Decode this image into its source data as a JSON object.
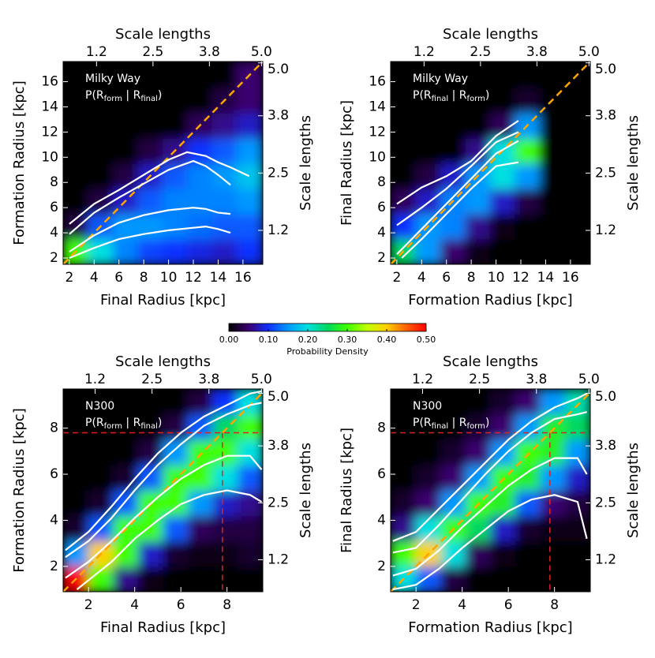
{
  "chart_data": [
    {
      "type": "heatmap",
      "name": "Milky Way",
      "formula": {
        "prefix": "P(R",
        "sub1": "form",
        "mid": " | R",
        "sub2": "final",
        "suffix": ")"
      },
      "xlabel": "Final Radius [kpc]",
      "ylabel": "Formation Radius [kpc]",
      "x2label": "Scale lengths",
      "y2label": "Scale lengths",
      "xlim": [
        1.5,
        17.6
      ],
      "ylim": [
        1.5,
        17.6
      ],
      "xticks": [
        2,
        4,
        6,
        8,
        10,
        12,
        14,
        16
      ],
      "yticks": [
        2,
        4,
        6,
        8,
        10,
        12,
        14,
        16
      ],
      "x2lim": [
        0.43,
        5.03
      ],
      "x2ticks": [
        1.2,
        2.5,
        3.8,
        {
          "value": 5,
          "label": "5.0"
        }
      ],
      "y2lim": [
        0.43,
        5.03
      ],
      "y2ticks": [
        1.2,
        2.5,
        3.8,
        {
          "value": 5,
          "label": "5.0"
        }
      ],
      "density": {
        "xbins": [
          1.5,
          3.5,
          5.5,
          7.5,
          9.5,
          11.5,
          13.5,
          15.5,
          17.6
        ],
        "ybins": [
          1.5,
          3.5,
          5.5,
          7.5,
          9.5,
          11.5,
          13.5,
          15.5,
          17.6
        ],
        "values": [
          [
            0.3,
            0.2,
            0.14,
            0.11,
            0.1,
            0.09,
            0.08,
            0.1
          ],
          [
            0.03,
            0.12,
            0.15,
            0.15,
            0.14,
            0.13,
            0.12,
            0.12
          ],
          [
            0,
            0.03,
            0.08,
            0.12,
            0.14,
            0.14,
            0.14,
            0.15
          ],
          [
            0,
            0,
            0.03,
            0.08,
            0.12,
            0.14,
            0.15,
            0.18
          ],
          [
            0,
            0,
            0,
            0.03,
            0.06,
            0.1,
            0.12,
            0.15
          ],
          [
            0,
            0,
            0,
            0,
            0,
            0.04,
            0.06,
            0.08
          ],
          [
            0,
            0,
            0,
            0,
            0,
            0,
            0.03,
            0.05
          ],
          [
            0,
            0,
            0,
            0,
            0,
            0,
            0,
            0.05
          ]
        ]
      },
      "contour_color": "#ffffff",
      "diagonal_color": "#ffa500",
      "contours": [
        {
          "x": [
            2,
            4,
            6,
            8,
            10,
            11.5,
            13,
            14,
            15,
            16.5
          ],
          "y": [
            4.7,
            6.3,
            7.4,
            8.6,
            9.8,
            10.4,
            10.1,
            9.6,
            9.2,
            8.5
          ]
        },
        {
          "x": [
            2,
            4,
            6,
            8,
            10,
            12,
            13,
            14,
            15
          ],
          "y": [
            3.9,
            5.6,
            6.8,
            7.9,
            9.0,
            9.7,
            9.3,
            8.6,
            7.8
          ]
        },
        {
          "x": [
            2,
            4,
            6,
            8,
            10,
            12,
            13,
            14,
            15
          ],
          "y": [
            2.5,
            3.8,
            4.8,
            5.4,
            5.8,
            6.0,
            5.9,
            5.6,
            5.5
          ]
        },
        {
          "x": [
            2,
            4,
            6,
            8,
            10,
            12,
            13,
            14,
            15
          ],
          "y": [
            2.0,
            2.8,
            3.5,
            3.9,
            4.2,
            4.4,
            4.5,
            4.3,
            4.0
          ]
        }
      ]
    },
    {
      "type": "heatmap",
      "name": "Milky Way",
      "formula": {
        "prefix": "P(R",
        "sub1": "final",
        "mid": " | R",
        "sub2": "form",
        "suffix": ")"
      },
      "xlabel": "Formation Radius [kpc]",
      "ylabel": "Final Radius [kpc]",
      "x2label": "Scale lengths",
      "y2label": "Scale lengths",
      "xlim": [
        1.5,
        17.6
      ],
      "ylim": [
        1.5,
        17.6
      ],
      "xticks": [
        2,
        4,
        6,
        8,
        10,
        12,
        14,
        16
      ],
      "yticks": [
        2,
        4,
        6,
        8,
        10,
        12,
        14,
        16
      ],
      "x2lim": [
        0.43,
        5.03
      ],
      "x2ticks": [
        1.2,
        2.5,
        3.8,
        {
          "value": 5,
          "label": "5.0"
        }
      ],
      "y2lim": [
        0.43,
        5.03
      ],
      "y2ticks": [
        1.2,
        2.5,
        3.8,
        {
          "value": 5,
          "label": "5.0"
        }
      ],
      "density": {
        "xbins": [
          1.5,
          3.5,
          5.5,
          7.5,
          9.5,
          11.5,
          13.5,
          15.5,
          17.6
        ],
        "ybins": [
          1.5,
          3.5,
          5.5,
          7.5,
          9.5,
          11.5,
          13.5,
          15.5,
          17.6
        ],
        "values": [
          [
            0.25,
            0.15,
            0.05,
            0.01,
            0,
            0,
            0,
            0
          ],
          [
            0.1,
            0.15,
            0.14,
            0.06,
            0.01,
            0,
            0,
            0
          ],
          [
            0.04,
            0.08,
            0.14,
            0.15,
            0.08,
            0.03,
            0,
            0
          ],
          [
            0,
            0.03,
            0.08,
            0.15,
            0.2,
            0.15,
            0,
            0
          ],
          [
            0,
            0,
            0,
            0.06,
            0.2,
            0.3,
            0,
            0
          ],
          [
            0,
            0,
            0,
            0,
            0.04,
            0.15,
            0,
            0
          ],
          [
            0,
            0,
            0,
            0,
            0,
            0.02,
            0,
            0
          ],
          [
            0,
            0,
            0,
            0,
            0,
            0,
            0,
            0
          ]
        ]
      },
      "contour_color": "#ffffff",
      "diagonal_color": "#ffa500",
      "contours": [
        {
          "x": [
            2,
            4,
            6,
            8,
            10,
            11.8
          ],
          "y": [
            6.3,
            7.6,
            8.5,
            9.7,
            11.7,
            12.9
          ]
        },
        {
          "x": [
            2,
            4,
            6,
            8,
            10,
            11.8
          ],
          "y": [
            4.6,
            6.0,
            7.5,
            9.3,
            11.2,
            12.0
          ]
        },
        {
          "x": [
            2,
            4,
            6,
            8,
            10,
            11.8
          ],
          "y": [
            2.3,
            4.3,
            6.3,
            8.3,
            10.3,
            11.3
          ]
        },
        {
          "x": [
            2.4,
            4,
            6,
            8,
            10,
            11.8
          ],
          "y": [
            2.0,
            3.5,
            5.5,
            7.5,
            9.3,
            9.6
          ]
        }
      ]
    },
    {
      "type": "heatmap",
      "name": "N300",
      "formula": {
        "prefix": "P(R",
        "sub1": "form",
        "mid": " | R",
        "sub2": "final",
        "suffix": ")"
      },
      "xlabel": "Final Radius [kpc]",
      "ylabel": "Formation Radius [kpc]",
      "x2label": "Scale lengths",
      "y2label": "Scale lengths",
      "xlim": [
        0.9,
        9.55
      ],
      "ylim": [
        0.9,
        9.7
      ],
      "xticks": [
        2,
        4,
        6,
        8
      ],
      "yticks": [
        2,
        4,
        6,
        8
      ],
      "x2lim": [
        0.47,
        5.03
      ],
      "x2ticks": [
        1.2,
        2.5,
        3.8,
        {
          "value": 5,
          "label": "5.0"
        }
      ],
      "y2lim": [
        0.47,
        5.1
      ],
      "y2ticks": [
        1.2,
        2.5,
        3.8,
        {
          "value": 5,
          "label": "5.0"
        }
      ],
      "reference": 7.8,
      "reference_color": "#e02020",
      "density": {
        "xbins": [
          0.9,
          1.98,
          3.06,
          4.14,
          5.22,
          6.3,
          7.38,
          8.46,
          9.55
        ],
        "ybins": [
          0.9,
          2,
          3.1,
          4.2,
          5.3,
          6.4,
          7.5,
          8.6,
          9.7
        ],
        "values": [
          [
            0.5,
            0.3,
            0.06,
            0.01,
            0,
            0,
            0,
            0
          ],
          [
            0.15,
            0.4,
            0.3,
            0.08,
            0.02,
            0.01,
            0.01,
            0.02
          ],
          [
            0.02,
            0.12,
            0.3,
            0.3,
            0.12,
            0.04,
            0.03,
            0.03
          ],
          [
            0,
            0.02,
            0.12,
            0.3,
            0.3,
            0.15,
            0.08,
            0.06
          ],
          [
            0,
            0,
            0.02,
            0.12,
            0.3,
            0.3,
            0.2,
            0.12
          ],
          [
            0,
            0,
            0,
            0.03,
            0.15,
            0.3,
            0.3,
            0.2
          ],
          [
            0,
            0,
            0,
            0,
            0.03,
            0.12,
            0.25,
            0.3
          ],
          [
            0,
            0,
            0,
            0,
            0,
            0.03,
            0.1,
            0.2
          ]
        ]
      },
      "contour_color": "#ffffff",
      "diagonal_color": "#ffa500",
      "contours": [
        {
          "x": [
            1,
            2,
            3,
            4,
            5,
            6,
            7,
            8,
            9,
            9.5
          ],
          "y": [
            2.7,
            3.5,
            4.6,
            5.8,
            6.9,
            7.8,
            8.5,
            9.0,
            9.5,
            9.6
          ]
        },
        {
          "x": [
            1,
            2,
            3,
            4,
            5,
            6,
            7,
            8,
            9,
            9.5
          ],
          "y": [
            2.4,
            3.1,
            4.1,
            5.3,
            6.4,
            7.3,
            8.1,
            8.6,
            9.0,
            9.1
          ]
        },
        {
          "x": [
            1,
            2,
            3,
            4,
            5,
            6,
            7,
            8,
            9,
            9.5
          ],
          "y": [
            1.5,
            2.2,
            3.1,
            4.1,
            5.0,
            5.8,
            6.4,
            6.8,
            6.8,
            6.2
          ]
        },
        {
          "x": [
            1.5,
            2,
            3,
            4,
            5,
            6,
            7,
            8,
            9,
            9.5
          ],
          "y": [
            1.0,
            1.4,
            2.2,
            3.2,
            4.0,
            4.7,
            5.1,
            5.3,
            5.1,
            4.8
          ]
        }
      ]
    },
    {
      "type": "heatmap",
      "name": "N300",
      "formula": {
        "prefix": "P(R",
        "sub1": "final",
        "mid": " | R",
        "sub2": "form",
        "suffix": ")"
      },
      "xlabel": "Formation Radius [kpc]",
      "ylabel": "Final Radius [kpc]",
      "x2label": "Scale lengths",
      "y2label": "Scale lengths",
      "xlim": [
        0.9,
        9.55
      ],
      "ylim": [
        0.9,
        9.7
      ],
      "xticks": [
        2,
        4,
        6,
        8
      ],
      "yticks": [
        2,
        4,
        6,
        8
      ],
      "x2lim": [
        0.47,
        5.03
      ],
      "x2ticks": [
        1.2,
        2.5,
        3.8,
        {
          "value": 5,
          "label": "5.0"
        }
      ],
      "y2lim": [
        0.47,
        5.1
      ],
      "y2ticks": [
        1.2,
        2.5,
        3.8,
        {
          "value": 5,
          "label": "5.0"
        }
      ],
      "reference": 7.8,
      "reference_color": "#e02020",
      "density": {
        "xbins": [
          0.9,
          1.98,
          3.06,
          4.14,
          5.22,
          6.3,
          7.38,
          8.46,
          9.55
        ],
        "ybins": [
          0.9,
          2,
          3.1,
          4.2,
          5.3,
          6.4,
          7.5,
          8.6,
          9.7
        ],
        "values": [
          [
            0.2,
            0.12,
            0.03,
            0,
            0,
            0,
            0,
            0
          ],
          [
            0.3,
            0.4,
            0.2,
            0.04,
            0.01,
            0,
            0,
            0
          ],
          [
            0.06,
            0.2,
            0.3,
            0.25,
            0.08,
            0.02,
            0.01,
            0.01
          ],
          [
            0.02,
            0.05,
            0.15,
            0.3,
            0.28,
            0.12,
            0.05,
            0.03
          ],
          [
            0,
            0.02,
            0.05,
            0.15,
            0.3,
            0.28,
            0.15,
            0.08
          ],
          [
            0,
            0,
            0.02,
            0.05,
            0.15,
            0.3,
            0.28,
            0.15
          ],
          [
            0,
            0,
            0,
            0.02,
            0.05,
            0.15,
            0.28,
            0.25
          ],
          [
            0,
            0,
            0,
            0,
            0.02,
            0.05,
            0.15,
            0.22
          ]
        ]
      },
      "contour_color": "#ffffff",
      "diagonal_color": "#ffa500",
      "contours": [
        {
          "x": [
            1,
            2,
            3,
            4,
            5,
            6,
            7,
            8,
            9,
            9.4
          ],
          "y": [
            3.1,
            3.5,
            4.5,
            5.5,
            6.5,
            7.5,
            8.3,
            8.9,
            9.3,
            9.5
          ]
        },
        {
          "x": [
            1,
            2,
            3,
            4,
            5,
            6,
            7,
            8,
            9,
            9.4
          ],
          "y": [
            2.6,
            2.8,
            3.8,
            4.9,
            6.0,
            7.0,
            7.8,
            8.4,
            8.6,
            8.7
          ]
        },
        {
          "x": [
            1,
            2,
            3,
            4,
            5,
            6,
            7,
            8,
            9,
            9.4
          ],
          "y": [
            1.6,
            1.9,
            2.7,
            3.7,
            4.6,
            5.5,
            6.2,
            6.7,
            6.7,
            6.0
          ]
        },
        {
          "x": [
            1,
            2,
            3,
            4,
            5,
            6,
            7,
            8,
            9,
            9.4
          ],
          "y": [
            1.0,
            1.2,
            1.9,
            2.8,
            3.6,
            4.4,
            4.9,
            5.1,
            4.8,
            3.2
          ]
        }
      ]
    }
  ],
  "colorbar": {
    "label": "Probability Density",
    "lim": [
      0,
      0.5
    ],
    "ticks": [
      {
        "value": 0,
        "label": "0.00"
      },
      {
        "value": 0.1,
        "label": "0.10"
      },
      {
        "value": 0.2,
        "label": "0.20"
      },
      {
        "value": 0.3,
        "label": "0.30"
      },
      {
        "value": 0.4,
        "label": "0.40"
      },
      {
        "value": 0.5,
        "label": "0.50"
      }
    ],
    "colormap": [
      "#000000",
      "#3a0070",
      "#1030ff",
      "#0098ff",
      "#00e0e0",
      "#00d860",
      "#40ff00",
      "#c0ff00",
      "#ffd000",
      "#ff6000",
      "#ff0000"
    ]
  }
}
